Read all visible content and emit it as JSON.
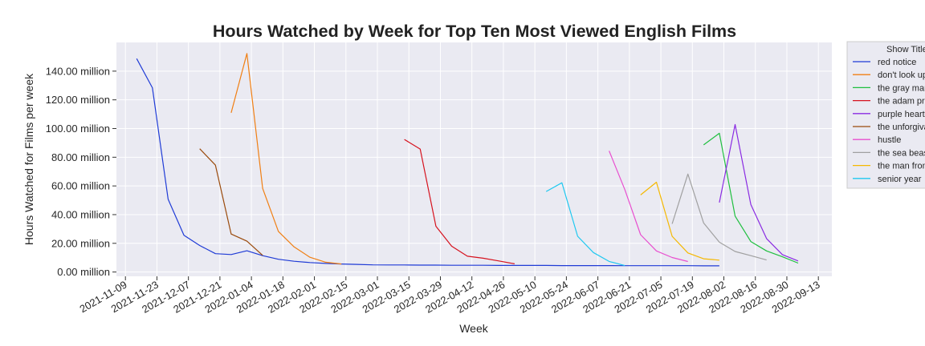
{
  "chart_data": {
    "type": "line",
    "title": "Hours Watched by Week for Top Ten Most Viewed English Films",
    "xlabel": "Week",
    "ylabel": "Hours Watched for Films per week",
    "x_ticks": [
      "2021-11-09",
      "2021-11-23",
      "2021-12-07",
      "2021-12-21",
      "2022-01-04",
      "2022-01-18",
      "2022-02-01",
      "2022-02-15",
      "2022-03-01",
      "2022-03-15",
      "2022-03-29",
      "2022-04-12",
      "2022-04-26",
      "2022-05-10",
      "2022-05-24",
      "2022-06-07",
      "2022-06-21",
      "2022-07-05",
      "2022-07-19",
      "2022-08-02",
      "2022-08-16",
      "2022-08-30",
      "2022-09-13"
    ],
    "y_ticks": [
      0,
      20,
      40,
      60,
      80,
      100,
      120,
      140
    ],
    "y_tick_labels": [
      "0.00 million",
      "20.00 million",
      "40.00 million",
      "60.00 million",
      "80.00 million",
      "100.00 million",
      "120.00 million",
      "140.00 million"
    ],
    "xlim": [
      "2021-11-05",
      "2022-09-19"
    ],
    "ylim": [
      -3,
      160
    ],
    "y_unit": "million hours",
    "grid": true,
    "legend": {
      "title": "Show Title",
      "placement": "outside-right-top"
    },
    "series": [
      {
        "name": "red notice",
        "color": "#1f3bd6",
        "x": [
          "2021-11-14",
          "2021-11-21",
          "2021-11-28",
          "2021-12-05",
          "2021-12-12",
          "2021-12-19",
          "2021-12-26",
          "2022-01-02",
          "2022-01-09",
          "2022-01-16",
          "2022-01-23",
          "2022-01-30",
          "2022-02-06",
          "2022-02-13",
          "2022-02-20",
          "2022-02-27",
          "2022-03-06",
          "2022-03-13",
          "2022-03-20",
          "2022-03-27",
          "2022-04-03",
          "2022-04-10",
          "2022-04-17",
          "2022-04-24",
          "2022-05-01",
          "2022-05-08",
          "2022-05-15",
          "2022-05-22",
          "2022-05-29",
          "2022-06-05",
          "2022-06-12",
          "2022-06-19",
          "2022-06-26",
          "2022-07-03",
          "2022-07-10",
          "2022-07-17",
          "2022-07-24",
          "2022-07-31"
        ],
        "values": [
          148.7,
          128.4,
          50.7,
          25.6,
          18.5,
          12.8,
          12.2,
          14.8,
          11.4,
          8.9,
          7.5,
          6.6,
          6.0,
          5.6,
          5.3,
          5.0,
          4.9,
          4.9,
          4.8,
          4.8,
          4.7,
          4.7,
          4.7,
          4.6,
          4.6,
          4.6,
          4.6,
          4.5,
          4.5,
          4.5,
          4.5,
          4.4,
          4.4,
          4.4,
          4.4,
          4.4,
          4.3,
          4.3
        ]
      },
      {
        "name": "don't look up",
        "color": "#f07f13",
        "x": [
          "2021-12-26",
          "2022-01-02",
          "2022-01-09",
          "2022-01-16",
          "2022-01-23",
          "2022-01-30",
          "2022-02-06",
          "2022-02-13"
        ],
        "values": [
          111.0,
          152.3,
          58.3,
          28.3,
          17.5,
          10.3,
          6.8,
          5.6
        ]
      },
      {
        "name": "the gray man",
        "color": "#1fbf3f",
        "x": [
          "2022-07-24",
          "2022-07-31",
          "2022-08-07",
          "2022-08-14",
          "2022-08-21",
          "2022-08-28",
          "2022-09-04"
        ],
        "values": [
          88.6,
          96.7,
          39.0,
          21.2,
          14.7,
          10.6,
          6.2
        ]
      },
      {
        "name": "the adam project",
        "color": "#d6121e",
        "x": [
          "2022-03-13",
          "2022-03-20",
          "2022-03-27",
          "2022-04-03",
          "2022-04-10",
          "2022-04-17",
          "2022-04-24",
          "2022-05-01"
        ],
        "values": [
          92.4,
          85.7,
          31.9,
          18.0,
          11.0,
          9.6,
          7.7,
          5.7
        ]
      },
      {
        "name": "purple hearts",
        "color": "#8a2be2",
        "x": [
          "2022-07-31",
          "2022-08-07",
          "2022-08-14",
          "2022-08-21",
          "2022-08-28",
          "2022-09-04"
        ],
        "values": [
          48.4,
          102.8,
          47.0,
          23.3,
          12.1,
          7.7
        ]
      },
      {
        "name": "the unforgivable",
        "color": "#9a4a0c",
        "x": [
          "2021-12-12",
          "2021-12-19",
          "2021-12-26",
          "2022-01-02",
          "2022-01-09"
        ],
        "values": [
          85.9,
          74.5,
          26.5,
          21.5,
          11.6
        ]
      },
      {
        "name": "hustle",
        "color": "#e84fcf",
        "x": [
          "2022-06-12",
          "2022-06-19",
          "2022-06-26",
          "2022-07-03",
          "2022-07-10",
          "2022-07-17"
        ],
        "values": [
          84.4,
          57.4,
          26.0,
          14.7,
          10.1,
          7.3
        ]
      },
      {
        "name": "the sea beast",
        "color": "#a0a0a0",
        "x": [
          "2022-07-10",
          "2022-07-17",
          "2022-07-24",
          "2022-07-31",
          "2022-08-07",
          "2022-08-14",
          "2022-08-21"
        ],
        "values": [
          33.6,
          68.3,
          34.2,
          20.8,
          14.3,
          11.4,
          8.4
        ]
      },
      {
        "name": "the man from toronto",
        "color": "#f5b800",
        "x": [
          "2022-06-26",
          "2022-07-03",
          "2022-07-10",
          "2022-07-17",
          "2022-07-24",
          "2022-07-31"
        ],
        "values": [
          53.7,
          62.6,
          24.9,
          13.3,
          9.2,
          8.3
        ]
      },
      {
        "name": "senior year",
        "color": "#1fc8f0",
        "x": [
          "2022-05-15",
          "2022-05-22",
          "2022-05-29",
          "2022-06-05",
          "2022-06-12",
          "2022-06-19"
        ],
        "values": [
          56.1,
          62.2,
          24.9,
          13.6,
          7.4,
          4.5
        ]
      }
    ]
  }
}
